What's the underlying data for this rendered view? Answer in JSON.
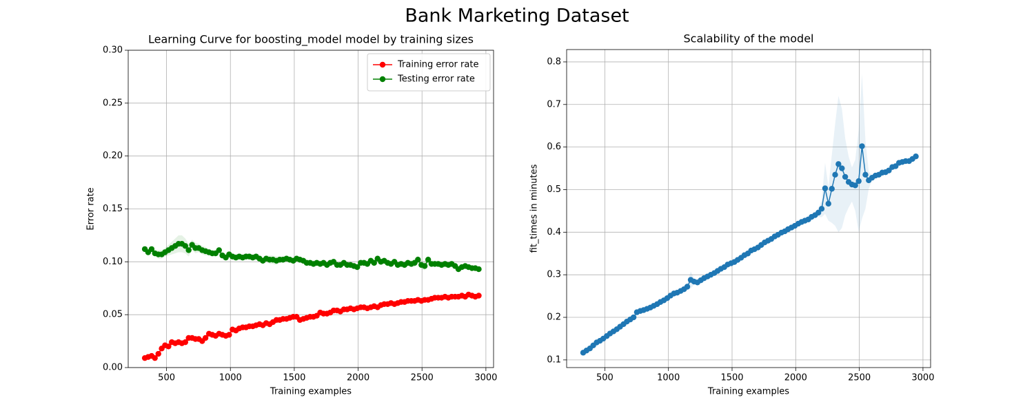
{
  "title": "Bank Marketing Dataset",
  "chart_data": [
    {
      "type": "line",
      "title": "Learning Curve for boosting_model model by training sizes",
      "xlabel": "Training examples",
      "ylabel": "Error rate",
      "x": [
        330,
        356,
        383,
        409,
        436,
        462,
        488,
        515,
        541,
        568,
        594,
        620,
        647,
        673,
        700,
        726,
        752,
        779,
        805,
        832,
        858,
        884,
        911,
        937,
        964,
        990,
        1016,
        1043,
        1069,
        1096,
        1122,
        1148,
        1175,
        1201,
        1228,
        1254,
        1280,
        1307,
        1333,
        1360,
        1386,
        1412,
        1439,
        1465,
        1492,
        1518,
        1544,
        1571,
        1597,
        1624,
        1650,
        1676,
        1703,
        1729,
        1756,
        1782,
        1808,
        1835,
        1861,
        1888,
        1914,
        1940,
        1967,
        1993,
        2020,
        2046,
        2072,
        2099,
        2125,
        2152,
        2178,
        2204,
        2231,
        2257,
        2284,
        2310,
        2336,
        2363,
        2389,
        2416,
        2442,
        2468,
        2495,
        2521,
        2548,
        2574,
        2600,
        2627,
        2653,
        2680,
        2706,
        2732,
        2759,
        2785,
        2812,
        2838,
        2864,
        2891,
        2917,
        2944
      ],
      "series": [
        {
          "name": "Training error rate",
          "color": "#ff0000",
          "values": [
            0.009,
            0.01,
            0.011,
            0.009,
            0.013,
            0.018,
            0.021,
            0.02,
            0.024,
            0.023,
            0.024,
            0.023,
            0.024,
            0.028,
            0.028,
            0.027,
            0.027,
            0.025,
            0.028,
            0.032,
            0.031,
            0.03,
            0.032,
            0.031,
            0.03,
            0.031,
            0.036,
            0.035,
            0.037,
            0.038,
            0.038,
            0.039,
            0.039,
            0.04,
            0.041,
            0.04,
            0.042,
            0.041,
            0.043,
            0.045,
            0.045,
            0.046,
            0.046,
            0.047,
            0.048,
            0.048,
            0.045,
            0.046,
            0.047,
            0.048,
            0.048,
            0.049,
            0.052,
            0.051,
            0.051,
            0.052,
            0.054,
            0.054,
            0.053,
            0.055,
            0.055,
            0.056,
            0.055,
            0.056,
            0.057,
            0.057,
            0.056,
            0.057,
            0.058,
            0.057,
            0.059,
            0.06,
            0.06,
            0.061,
            0.06,
            0.061,
            0.062,
            0.062,
            0.063,
            0.063,
            0.063,
            0.064,
            0.063,
            0.064,
            0.064,
            0.065,
            0.066,
            0.066,
            0.066,
            0.067,
            0.066,
            0.067,
            0.067,
            0.067,
            0.068,
            0.067,
            0.069,
            0.068,
            0.067,
            0.068
          ],
          "std": [
            0.001,
            0.001,
            0.001,
            0.001,
            0.001,
            0.001,
            0.001,
            0.001,
            0.001,
            0.001,
            0.001,
            0.001,
            0.001,
            0.001,
            0.001,
            0.001,
            0.001,
            0.001,
            0.001,
            0.001,
            0.001,
            0.001,
            0.001,
            0.001,
            0.001,
            0.001,
            0.001,
            0.001,
            0.001,
            0.001,
            0.001,
            0.001,
            0.001,
            0.001,
            0.001,
            0.001,
            0.001,
            0.001,
            0.001,
            0.001,
            0.001,
            0.001,
            0.001,
            0.001,
            0.001,
            0.001,
            0.002,
            0.002,
            0.002,
            0.002,
            0.002,
            0.002,
            0.002,
            0.002,
            0.002,
            0.002,
            0.002,
            0.002,
            0.002,
            0.002,
            0.002,
            0.002,
            0.002,
            0.002,
            0.002,
            0.002,
            0.002,
            0.002,
            0.002,
            0.002,
            0.001,
            0.001,
            0.001,
            0.001,
            0.001,
            0.001,
            0.001,
            0.001,
            0.001,
            0.001,
            0.001,
            0.001,
            0.001,
            0.001,
            0.001,
            0.001,
            0.001,
            0.001,
            0.001,
            0.001,
            0.001,
            0.001,
            0.001,
            0.001,
            0.001,
            0.001,
            0.001,
            0.001,
            0.001,
            0.001
          ]
        },
        {
          "name": "Testing error rate",
          "color": "#008000",
          "values": [
            0.112,
            0.109,
            0.112,
            0.108,
            0.107,
            0.107,
            0.109,
            0.111,
            0.113,
            0.115,
            0.117,
            0.117,
            0.115,
            0.111,
            0.116,
            0.113,
            0.113,
            0.111,
            0.11,
            0.109,
            0.108,
            0.108,
            0.111,
            0.106,
            0.104,
            0.107,
            0.105,
            0.104,
            0.105,
            0.104,
            0.105,
            0.105,
            0.104,
            0.105,
            0.103,
            0.101,
            0.103,
            0.102,
            0.102,
            0.101,
            0.102,
            0.102,
            0.103,
            0.102,
            0.101,
            0.103,
            0.102,
            0.101,
            0.099,
            0.099,
            0.098,
            0.099,
            0.098,
            0.099,
            0.097,
            0.099,
            0.1,
            0.097,
            0.097,
            0.099,
            0.097,
            0.097,
            0.096,
            0.095,
            0.099,
            0.099,
            0.098,
            0.101,
            0.099,
            0.103,
            0.1,
            0.101,
            0.099,
            0.098,
            0.1,
            0.097,
            0.098,
            0.097,
            0.099,
            0.098,
            0.099,
            0.102,
            0.097,
            0.096,
            0.102,
            0.098,
            0.098,
            0.098,
            0.097,
            0.098,
            0.097,
            0.098,
            0.096,
            0.093,
            0.095,
            0.096,
            0.095,
            0.094,
            0.094,
            0.093
          ],
          "std": [
            0.003,
            0.003,
            0.003,
            0.003,
            0.004,
            0.004,
            0.004,
            0.005,
            0.006,
            0.007,
            0.008,
            0.008,
            0.007,
            0.006,
            0.005,
            0.005,
            0.004,
            0.004,
            0.004,
            0.003,
            0.003,
            0.003,
            0.003,
            0.003,
            0.003,
            0.003,
            0.003,
            0.003,
            0.003,
            0.003,
            0.003,
            0.003,
            0.003,
            0.003,
            0.003,
            0.003,
            0.003,
            0.004,
            0.004,
            0.004,
            0.003,
            0.003,
            0.003,
            0.003,
            0.003,
            0.003,
            0.003,
            0.003,
            0.003,
            0.003,
            0.003,
            0.003,
            0.003,
            0.003,
            0.003,
            0.003,
            0.003,
            0.003,
            0.003,
            0.003,
            0.003,
            0.003,
            0.003,
            0.003,
            0.003,
            0.003,
            0.003,
            0.003,
            0.003,
            0.003,
            0.003,
            0.003,
            0.003,
            0.003,
            0.003,
            0.003,
            0.003,
            0.003,
            0.003,
            0.003,
            0.004,
            0.004,
            0.004,
            0.004,
            0.004,
            0.003,
            0.003,
            0.003,
            0.003,
            0.003,
            0.003,
            0.003,
            0.003,
            0.003,
            0.002,
            0.002,
            0.002,
            0.002,
            0.002,
            0.002
          ]
        }
      ],
      "xlim": [
        200,
        3060
      ],
      "ylim": [
        0,
        0.3
      ],
      "xticks": [
        500,
        1000,
        1500,
        2000,
        2500,
        3000
      ],
      "yticks": [
        {
          "value": 0,
          "label": "0.00"
        },
        {
          "value": 0.05,
          "label": "0.05"
        },
        {
          "value": 0.1,
          "label": "0.10"
        },
        {
          "value": 0.15,
          "label": "0.15"
        },
        {
          "value": 0.2,
          "label": "0.20"
        },
        {
          "value": 0.25,
          "label": "0.25"
        },
        {
          "value": 0.3,
          "label": "0.30"
        }
      ],
      "grid": true,
      "legend": "upper right"
    },
    {
      "type": "line",
      "title": "Scalability of the model",
      "xlabel": "Training examples",
      "ylabel": "fit_times in minutes",
      "x": [
        330,
        356,
        383,
        409,
        436,
        462,
        488,
        515,
        541,
        568,
        594,
        620,
        647,
        673,
        700,
        726,
        752,
        779,
        805,
        832,
        858,
        884,
        911,
        937,
        964,
        990,
        1016,
        1043,
        1069,
        1096,
        1122,
        1148,
        1175,
        1201,
        1228,
        1254,
        1280,
        1307,
        1333,
        1360,
        1386,
        1412,
        1439,
        1465,
        1492,
        1518,
        1544,
        1571,
        1597,
        1624,
        1650,
        1676,
        1703,
        1729,
        1756,
        1782,
        1808,
        1835,
        1861,
        1888,
        1914,
        1940,
        1967,
        1993,
        2020,
        2046,
        2072,
        2099,
        2125,
        2152,
        2178,
        2204,
        2231,
        2257,
        2284,
        2310,
        2336,
        2363,
        2389,
        2416,
        2442,
        2468,
        2495,
        2521,
        2548,
        2574,
        2600,
        2627,
        2653,
        2680,
        2706,
        2732,
        2759,
        2785,
        2812,
        2838,
        2864,
        2891,
        2917,
        2944
      ],
      "series": [
        {
          "color": "#1f77b4",
          "values": [
            0.117,
            0.122,
            0.127,
            0.134,
            0.141,
            0.145,
            0.15,
            0.156,
            0.162,
            0.167,
            0.172,
            0.178,
            0.184,
            0.19,
            0.195,
            0.2,
            0.212,
            0.215,
            0.217,
            0.22,
            0.223,
            0.227,
            0.231,
            0.236,
            0.24,
            0.245,
            0.251,
            0.256,
            0.258,
            0.262,
            0.266,
            0.272,
            0.288,
            0.284,
            0.282,
            0.287,
            0.292,
            0.296,
            0.3,
            0.304,
            0.309,
            0.314,
            0.318,
            0.324,
            0.327,
            0.33,
            0.335,
            0.34,
            0.346,
            0.35,
            0.357,
            0.36,
            0.364,
            0.37,
            0.376,
            0.38,
            0.384,
            0.39,
            0.394,
            0.399,
            0.402,
            0.407,
            0.411,
            0.415,
            0.42,
            0.424,
            0.427,
            0.43,
            0.436,
            0.44,
            0.446,
            0.455,
            0.503,
            0.467,
            0.502,
            0.535,
            0.56,
            0.55,
            0.53,
            0.518,
            0.512,
            0.51,
            0.52,
            0.602,
            0.535,
            0.522,
            0.528,
            0.533,
            0.535,
            0.54,
            0.541,
            0.545,
            0.553,
            0.555,
            0.563,
            0.565,
            0.567,
            0.567,
            0.572,
            0.578
          ],
          "std": [
            0.003,
            0.003,
            0.003,
            0.003,
            0.003,
            0.003,
            0.003,
            0.003,
            0.003,
            0.003,
            0.003,
            0.003,
            0.003,
            0.003,
            0.003,
            0.003,
            0.005,
            0.005,
            0.003,
            0.003,
            0.003,
            0.003,
            0.003,
            0.003,
            0.003,
            0.003,
            0.003,
            0.003,
            0.003,
            0.003,
            0.003,
            0.008,
            0.02,
            0.008,
            0.003,
            0.003,
            0.003,
            0.003,
            0.003,
            0.003,
            0.003,
            0.003,
            0.003,
            0.003,
            0.003,
            0.003,
            0.003,
            0.003,
            0.003,
            0.003,
            0.003,
            0.003,
            0.003,
            0.003,
            0.003,
            0.003,
            0.003,
            0.003,
            0.003,
            0.003,
            0.003,
            0.003,
            0.003,
            0.003,
            0.003,
            0.003,
            0.003,
            0.003,
            0.003,
            0.003,
            0.01,
            0.02,
            0.06,
            0.04,
            0.08,
            0.12,
            0.16,
            0.14,
            0.09,
            0.06,
            0.04,
            0.06,
            0.12,
            0.17,
            0.08,
            0.02,
            0.005,
            0.005,
            0.005,
            0.005,
            0.005,
            0.005,
            0.005,
            0.005,
            0.005,
            0.005,
            0.005,
            0.005,
            0.005,
            0.005
          ]
        }
      ],
      "xlim": [
        200,
        3060
      ],
      "ylim": [
        0.082,
        0.829
      ],
      "xticks": [
        500,
        1000,
        1500,
        2000,
        2500,
        3000
      ],
      "yticks": [
        0.1,
        0.2,
        0.3,
        0.4,
        0.5,
        0.6,
        0.7,
        0.8
      ],
      "grid": true
    }
  ]
}
